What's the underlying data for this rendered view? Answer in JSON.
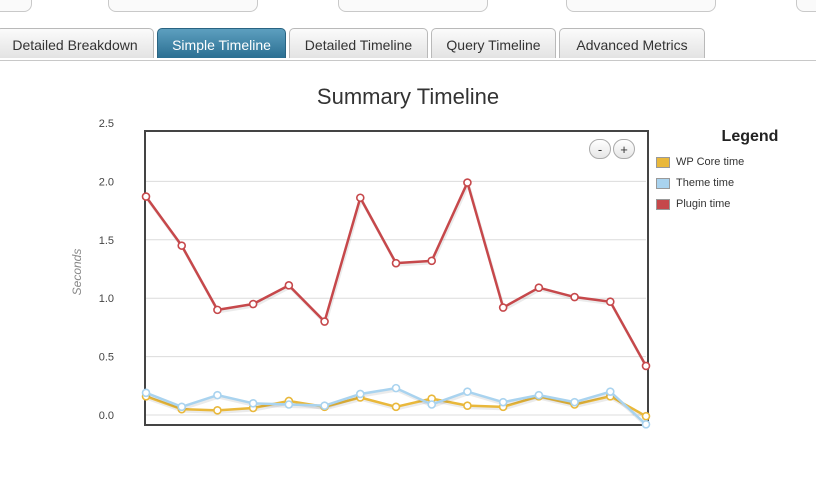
{
  "tabs": [
    {
      "label": "Detailed Breakdown",
      "active": false
    },
    {
      "label": "Simple Timeline",
      "active": true
    },
    {
      "label": "Detailed Timeline",
      "active": false
    },
    {
      "label": "Query Timeline",
      "active": false
    },
    {
      "label": "Advanced Metrics",
      "active": false
    }
  ],
  "zoom": {
    "out_label": "-",
    "in_label": "+"
  },
  "legend": {
    "title": "Legend"
  },
  "chart_data": {
    "type": "line",
    "title": "Summary Timeline",
    "xlabel": "",
    "ylabel": "Seconds",
    "ylim": [
      0,
      2.5
    ],
    "yticks": [
      "0.0",
      "0.5",
      "1.0",
      "1.5",
      "2.0",
      "2.5"
    ],
    "grid": true,
    "legend_position": "right",
    "x": [
      1,
      2,
      3,
      4,
      5,
      6,
      7,
      8,
      9,
      10,
      11,
      12,
      13,
      14,
      15
    ],
    "series": [
      {
        "name": "WP Core time",
        "color": "#e9b83b",
        "values": [
          0.16,
          0.05,
          0.04,
          0.06,
          0.12,
          0.07,
          0.15,
          0.07,
          0.14,
          0.08,
          0.07,
          0.16,
          0.09,
          0.16,
          -0.01
        ]
      },
      {
        "name": "Theme time",
        "color": "#a9d3ef",
        "values": [
          0.19,
          0.07,
          0.17,
          0.1,
          0.09,
          0.08,
          0.18,
          0.23,
          0.09,
          0.2,
          0.11,
          0.17,
          0.11,
          0.2,
          -0.08
        ]
      },
      {
        "name": "Plugin time",
        "color": "#c6484b",
        "values": [
          1.87,
          1.45,
          0.9,
          0.95,
          1.11,
          0.8,
          1.86,
          1.3,
          1.32,
          1.99,
          0.92,
          1.09,
          1.01,
          0.97,
          0.42
        ]
      }
    ]
  }
}
